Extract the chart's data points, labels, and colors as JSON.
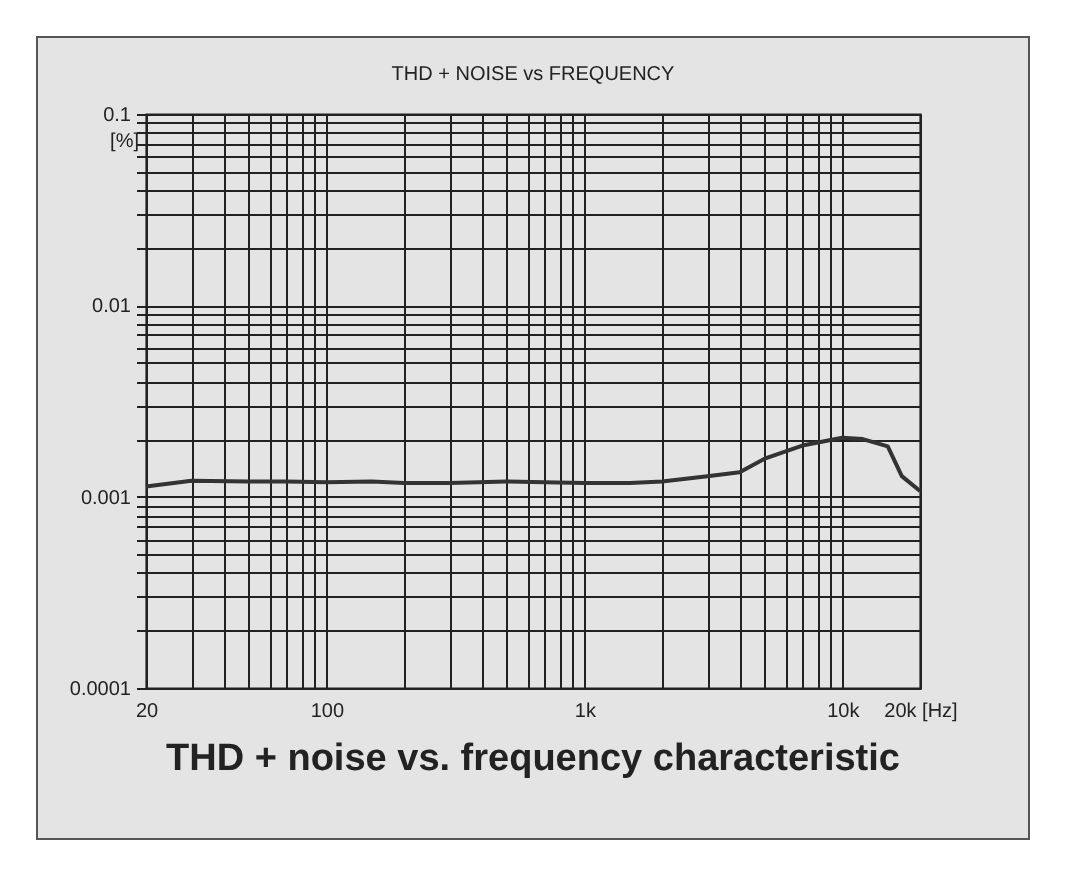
{
  "chart_data": {
    "type": "line",
    "title": "THD + NOISE vs FREQUENCY",
    "ylabel": "[%]",
    "annotations": [
      "THD + noise vs. frequency characteristic"
    ],
    "x": [
      20,
      30,
      50,
      70,
      100,
      150,
      200,
      300,
      500,
      700,
      1000,
      1500,
      2000,
      3000,
      4000,
      5000,
      7000,
      10000,
      12000,
      15000,
      17000,
      20000
    ],
    "series": [
      {
        "color": "#333333",
        "values": [
          0.00113,
          0.00121,
          0.0012,
          0.0012,
          0.00119,
          0.0012,
          0.00118,
          0.00118,
          0.0012,
          0.00119,
          0.00118,
          0.00118,
          0.0012,
          0.00128,
          0.00134,
          0.00158,
          0.00185,
          0.00203,
          0.002,
          0.00183,
          0.00128,
          0.00107
        ]
      }
    ],
    "log": "xy",
    "grid": true,
    "line_style": "solid",
    "xlim": [
      20,
      20000
    ],
    "ylim": [
      0.0001,
      0.1
    ],
    "xticks": [
      20,
      {
        "value": 30,
        "label": null
      },
      {
        "value": 40,
        "label": null
      },
      {
        "value": 50,
        "label": null
      },
      {
        "value": 60,
        "label": null
      },
      {
        "value": 70,
        "label": null
      },
      {
        "value": 80,
        "label": null
      },
      {
        "value": 90,
        "label": null
      },
      100,
      {
        "value": 200,
        "label": null
      },
      {
        "value": 300,
        "label": null
      },
      {
        "value": 400,
        "label": null
      },
      {
        "value": 500,
        "label": null
      },
      {
        "value": 600,
        "label": null
      },
      {
        "value": 700,
        "label": null
      },
      {
        "value": 800,
        "label": null
      },
      {
        "value": 900,
        "label": null
      },
      {
        "value": 1000,
        "label": "1k"
      },
      {
        "value": 2000,
        "label": null
      },
      {
        "value": 3000,
        "label": null
      },
      {
        "value": 4000,
        "label": null
      },
      {
        "value": 5000,
        "label": null
      },
      {
        "value": 6000,
        "label": null
      },
      {
        "value": 7000,
        "label": null
      },
      {
        "value": 8000,
        "label": null
      },
      {
        "value": 9000,
        "label": null
      },
      {
        "value": 10000,
        "label": "10k"
      },
      {
        "value": 20000,
        "label": "20k [Hz]"
      }
    ],
    "yticks": [
      0.0001,
      {
        "value": 0.0002,
        "label": null
      },
      {
        "value": 0.0003,
        "label": null
      },
      {
        "value": 0.0004,
        "label": null
      },
      {
        "value": 0.0005,
        "label": null
      },
      {
        "value": 0.0006,
        "label": null
      },
      {
        "value": 0.0007,
        "label": null
      },
      {
        "value": 0.0008,
        "label": null
      },
      {
        "value": 0.0009,
        "label": null
      },
      0.001,
      {
        "value": 0.002,
        "label": null
      },
      {
        "value": 0.003,
        "label": null
      },
      {
        "value": 0.004,
        "label": null
      },
      {
        "value": 0.005,
        "label": null
      },
      {
        "value": 0.006,
        "label": null
      },
      {
        "value": 0.007,
        "label": null
      },
      {
        "value": 0.008,
        "label": null
      },
      {
        "value": 0.009,
        "label": null
      },
      0.01,
      {
        "value": 0.02,
        "label": null
      },
      {
        "value": 0.03,
        "label": null
      },
      {
        "value": 0.04,
        "label": null
      },
      {
        "value": 0.05,
        "label": null
      },
      {
        "value": 0.06,
        "label": null
      },
      {
        "value": 0.07,
        "label": null
      },
      {
        "value": 0.08,
        "label": null
      },
      {
        "value": 0.09,
        "label": null
      },
      0.1
    ]
  }
}
